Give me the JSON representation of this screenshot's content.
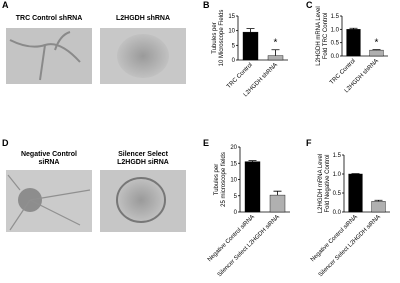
{
  "images": [
    {
      "panel": "A",
      "captions": [
        [
          "TRC Control shRNA"
        ],
        [
          "L2HGDH shRNA"
        ]
      ]
    },
    {
      "panel": "D",
      "captions": [
        [
          "Negative Control",
          "siRNA"
        ],
        [
          "Silencer Select",
          "L2HGDH siRNA"
        ]
      ]
    }
  ],
  "chart_data": [
    {
      "type": "bar",
      "panel": "B",
      "ylabel": [
        "Tubules per",
        "10 Microscope Fields"
      ],
      "categories": [
        "TRC Control",
        "L2HGDH shRNA"
      ],
      "values": [
        9.5,
        1.5
      ],
      "errors": [
        1.2,
        2.0
      ],
      "colors": [
        "#000000",
        "#b0b0b0"
      ],
      "annotation": "*",
      "ylim": [
        0,
        15
      ],
      "yticks": [
        0,
        5,
        10,
        15
      ]
    },
    {
      "type": "bar",
      "panel": "C",
      "ylabel": [
        "L2HGDH mRNA Level",
        "Fold TRC Control"
      ],
      "categories": [
        "TRC Control",
        "L2HGDH shRNA"
      ],
      "values": [
        1.0,
        0.22
      ],
      "errors": [
        0.04,
        0.02
      ],
      "colors": [
        "#000000",
        "#b0b0b0"
      ],
      "annotation": "*",
      "ylim": [
        0,
        1.5
      ],
      "yticks": [
        {
          "value": 0,
          "label": "0.0"
        },
        0.5,
        {
          "value": 1,
          "label": "1.0"
        },
        1.5
      ]
    },
    {
      "type": "bar",
      "panel": "E",
      "ylabel": [
        "Tubules per",
        "25 microscope fields"
      ],
      "categories": [
        "Negative Control siRNA",
        "Silencer Select L2HGDH siRNA"
      ],
      "values": [
        15.5,
        5.2
      ],
      "errors": [
        0.3,
        1.2
      ],
      "colors": [
        "#000000",
        "#b0b0b0"
      ],
      "ylim": [
        0,
        20
      ],
      "yticks": [
        0,
        5,
        10,
        15,
        20
      ]
    },
    {
      "type": "bar",
      "panel": "F",
      "ylabel": [
        "L2HGDH mRNA Level",
        "Fold Negative Control"
      ],
      "categories": [
        "Negative Control siRNA",
        "Silencer Select L2HGDH siRNA"
      ],
      "values": [
        1.0,
        0.28
      ],
      "errors": [
        0.01,
        0.03
      ],
      "colors": [
        "#000000",
        "#b0b0b0"
      ],
      "ylim": [
        0,
        1.5
      ],
      "yticks": [
        {
          "value": 0,
          "label": "0.0"
        },
        0.5,
        {
          "value": 1,
          "label": "1.0"
        },
        1.5
      ]
    }
  ]
}
